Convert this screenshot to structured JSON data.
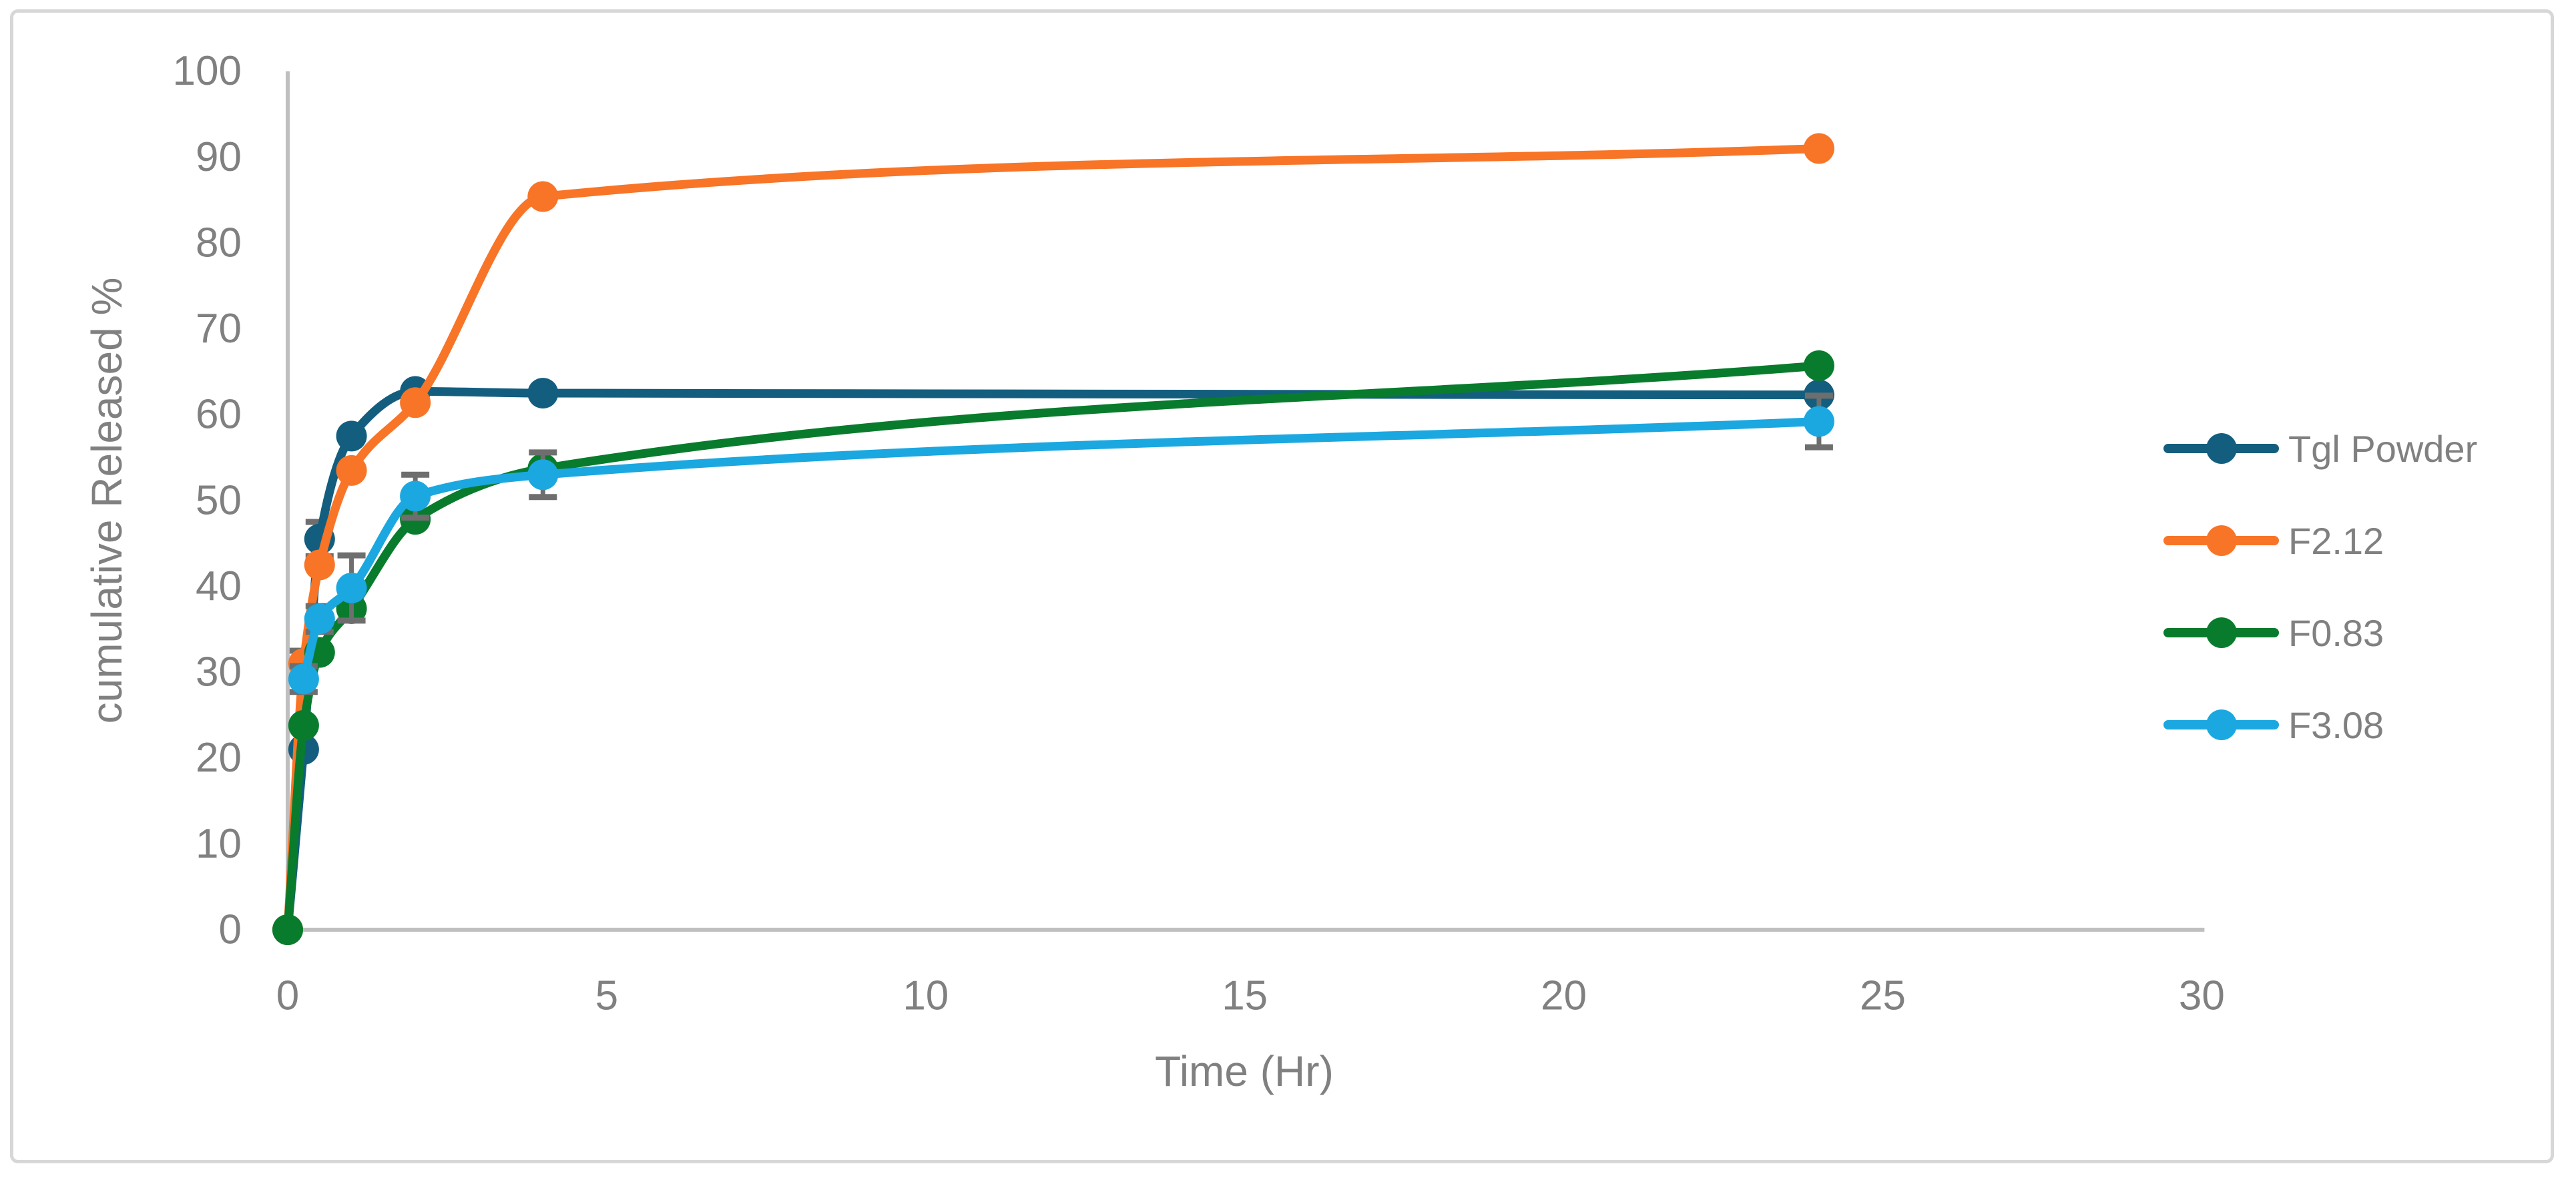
{
  "styles": {
    "background": "#FFFFFF",
    "frame_border_color": "#D7D7D7",
    "axis_line_color": "#BFBFBF",
    "tick_label_color": "#808080",
    "error_bar_color": "#6E6E6E",
    "series_colors": [
      "#135E7E",
      "#F87427",
      "#087C2C",
      "#1BA7E0"
    ]
  },
  "chart_data": {
    "type": "line",
    "title": "",
    "xlabel": "Time (Hr)",
    "ylabel": "cumulative Released %",
    "xlim": [
      0,
      30
    ],
    "ylim": [
      0,
      100
    ],
    "x_ticks": [
      0,
      5,
      10,
      15,
      20,
      25,
      30
    ],
    "y_ticks": [
      0,
      10,
      20,
      30,
      40,
      50,
      60,
      70,
      80,
      90,
      100
    ],
    "grid": false,
    "legend_position": "right",
    "line_style": "smooth",
    "marker": "circle",
    "series": [
      {
        "name": "Tgl Powder",
        "color": "#135E7E",
        "points_thv_err": [
          [
            0,
            0,
            0
          ],
          [
            0.25,
            21.0,
            0
          ],
          [
            0.5,
            45.5,
            2.0
          ],
          [
            1,
            57.5,
            0
          ],
          [
            2,
            62.7,
            0
          ],
          [
            4,
            62.5,
            0
          ],
          [
            24,
            62.3,
            0
          ]
        ]
      },
      {
        "name": "F2.12",
        "color": "#F87427",
        "points_thv_err": [
          [
            0,
            0,
            0
          ],
          [
            0.25,
            31.0,
            1.5
          ],
          [
            0.5,
            42.5,
            0
          ],
          [
            1,
            53.5,
            0
          ],
          [
            2,
            61.4,
            0
          ],
          [
            4,
            85.4,
            0
          ],
          [
            24,
            91.0,
            0
          ]
        ]
      },
      {
        "name": "F0.83",
        "color": "#087C2C",
        "points_thv_err": [
          [
            0,
            0,
            0
          ],
          [
            0.25,
            23.8,
            0
          ],
          [
            0.5,
            32.3,
            0
          ],
          [
            1,
            37.4,
            0
          ],
          [
            2,
            47.8,
            0
          ],
          [
            4,
            53.7,
            0
          ],
          [
            24,
            65.7,
            0
          ]
        ]
      },
      {
        "name": "F3.08",
        "color": "#1BA7E0",
        "points_thv_err": [
          [
            0.25,
            29.2,
            1.5
          ],
          [
            0.5,
            36.2,
            1.5
          ],
          [
            1,
            39.8,
            3.8
          ],
          [
            2,
            50.5,
            2.5
          ],
          [
            4,
            53.0,
            2.6
          ],
          [
            24,
            59.2,
            3.0
          ]
        ]
      }
    ]
  }
}
